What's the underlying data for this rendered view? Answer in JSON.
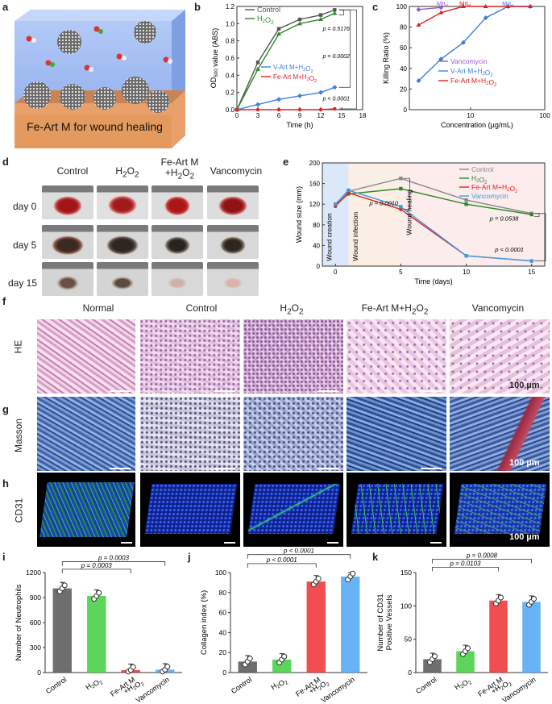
{
  "panel_labels": {
    "a": "a",
    "b": "b",
    "c": "c",
    "d": "d",
    "e": "e",
    "f": "f",
    "g": "g",
    "h": "h",
    "i": "i",
    "j": "j",
    "k": "k"
  },
  "panel_a": {
    "caption": "Fe-Art M  for wound healing"
  },
  "panel_d": {
    "columns": [
      "Control",
      "H2O2",
      "Fe-Art M\n+H2O2",
      "Vancomycin"
    ],
    "rows": [
      "day 0",
      "day 5",
      "day 15"
    ]
  },
  "histology": {
    "columns": [
      "Normal",
      "Control",
      "H2O2",
      "Fe-Art M+H2O2",
      "Vancomycin"
    ],
    "rows": {
      "f": "HE",
      "g": "Masson",
      "h": "CD31"
    },
    "scalebar": "100 µm"
  },
  "chart_data": [
    {
      "panel": "b",
      "type": "line",
      "xlabel": "Time (h)",
      "ylabel": "OD600 value (ABS)",
      "xlim": [
        0,
        18
      ],
      "ylim": [
        0,
        1.2
      ],
      "xticks": [
        0,
        3,
        6,
        9,
        12,
        15,
        18
      ],
      "yticks": [
        0.0,
        0.2,
        0.4,
        0.6,
        0.8,
        1.0,
        1.2
      ],
      "x": [
        0,
        3,
        6,
        9,
        12,
        14
      ],
      "series": [
        {
          "name": "Control",
          "color": "#555555",
          "values": [
            0.0,
            0.55,
            0.94,
            1.05,
            1.1,
            1.16
          ]
        },
        {
          "name": "H2O2",
          "color": "#2a8a2a",
          "values": [
            0.0,
            0.47,
            0.88,
            1.0,
            1.05,
            1.12
          ]
        },
        {
          "name": "V-Art M+H2O2",
          "color": "#3d7fe0",
          "values": [
            0.0,
            0.06,
            0.12,
            0.16,
            0.2,
            0.26
          ]
        },
        {
          "name": "Fe-Art M+H2O2",
          "color": "#e02020",
          "values": [
            0.0,
            0.0,
            0.0,
            0.0,
            0.0,
            0.01
          ]
        }
      ],
      "annotations": [
        "p = 0.5176",
        "p = 0.0002",
        "p < 0.0001"
      ]
    },
    {
      "panel": "c",
      "type": "line",
      "xlabel": "Concentration (µg/mL)",
      "ylabel": "Killing Ratio (%)",
      "xscale": "log",
      "xlim": [
        1.5,
        100
      ],
      "ylim": [
        0,
        100
      ],
      "xtick_labels": [
        "10",
        "100"
      ],
      "yticks": [
        0,
        20,
        40,
        60,
        80,
        100
      ],
      "series": [
        {
          "name": "Vancomycin",
          "color": "#9b59d0",
          "x": [
            2,
            4
          ],
          "values": [
            97,
            99
          ]
        },
        {
          "name": "V-Art M+H2O2",
          "color": "#3d7fe0",
          "x": [
            2,
            4,
            8,
            16,
            32,
            64
          ],
          "values": [
            28,
            49,
            65,
            89,
            100,
            100
          ]
        },
        {
          "name": "Fe-Art M+H2O2",
          "color": "#e02020",
          "x": [
            2,
            4,
            8,
            16,
            32,
            64
          ],
          "values": [
            82,
            94,
            100,
            100,
            100,
            100
          ]
        }
      ],
      "annotations": [
        "MIC",
        "MIC",
        "MIC"
      ]
    },
    {
      "panel": "e",
      "type": "line",
      "xlabel": "Time (days)",
      "ylabel": "Wound size (mm)",
      "xlim": [
        -1,
        16
      ],
      "ylim": [
        0,
        200
      ],
      "xticks": [
        0,
        5,
        10,
        15
      ],
      "yticks": [
        0,
        40,
        80,
        120,
        160,
        200
      ],
      "x": [
        0,
        1,
        5,
        10,
        15
      ],
      "series": [
        {
          "name": "Control",
          "color": "#888888",
          "values": [
            120,
            145,
            170,
            128,
            102
          ]
        },
        {
          "name": "H2O2",
          "color": "#2a8a2a",
          "values": [
            118,
            140,
            150,
            120,
            100
          ]
        },
        {
          "name": "Fe-Art M+H2O2",
          "color": "#e02020",
          "values": [
            116,
            142,
            110,
            20,
            10
          ]
        },
        {
          "name": "Vancomycin",
          "color": "#3d9be0",
          "values": [
            120,
            147,
            115,
            20,
            10
          ]
        }
      ],
      "phase_labels": [
        "Wound creation",
        "Wound infection",
        "Wound healing"
      ],
      "annotations": [
        "p = 0.0010",
        "p = 0.0538",
        "p < 0.0001"
      ]
    },
    {
      "panel": "i",
      "type": "bar",
      "ylabel": "Number of Neutrophils",
      "ylim": [
        0,
        1200
      ],
      "yticks": [
        0,
        300,
        600,
        900,
        1200
      ],
      "categories": [
        "Control",
        "H2O2",
        "Fe-Art M\n+H2O2",
        "Vancomycin"
      ],
      "values": [
        1010,
        920,
        30,
        35
      ],
      "colors": [
        "#555555",
        "#3ecf3e",
        "#ee3030",
        "#4da6f5"
      ],
      "annotations": [
        "p = 0.0003",
        "p = 0.0003"
      ]
    },
    {
      "panel": "j",
      "type": "bar",
      "ylabel": "Collagen index (%)",
      "ylim": [
        0,
        100
      ],
      "yticks": [
        0,
        20,
        40,
        60,
        80,
        100
      ],
      "categories": [
        "Control",
        "H2O2",
        "Fe-Art M\n+H2O2",
        "Vancomycin"
      ],
      "values": [
        11,
        13,
        91,
        96
      ],
      "colors": [
        "#555555",
        "#3ecf3e",
        "#ee3030",
        "#4da6f5"
      ],
      "annotations": [
        "p < 0.0001",
        "p < 0.0001"
      ]
    },
    {
      "panel": "k",
      "type": "bar",
      "ylabel": "Number of CD31\nPositive Vessels",
      "ylim": [
        0,
        150
      ],
      "yticks": [
        0,
        50,
        100,
        150
      ],
      "categories": [
        "Control",
        "H2O2",
        "Fe-Art M\n+H2O2",
        "Vancomycin"
      ],
      "values": [
        20,
        32,
        108,
        106
      ],
      "colors": [
        "#555555",
        "#3ecf3e",
        "#ee3030",
        "#4da6f5"
      ],
      "annotations": [
        "p = 0.0008",
        "p = 0.0103"
      ]
    }
  ]
}
